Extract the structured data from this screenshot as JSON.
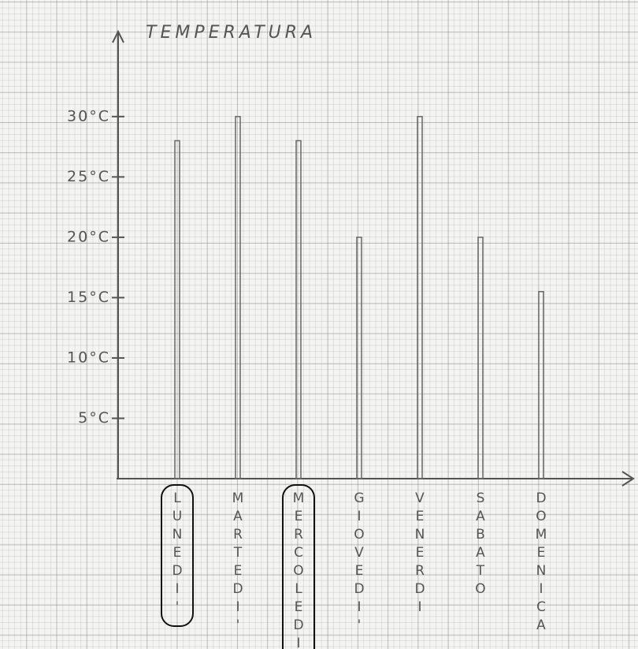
{
  "chart_data": {
    "type": "bar",
    "title": "TEMPERATURA",
    "categories": [
      "LUNEDI'",
      "MARTEDI'",
      "MERCOLEDI",
      "GIOVEDI'",
      "VENERDI",
      "SABATO",
      "DOMENICA"
    ],
    "values": [
      28,
      30,
      28,
      20,
      30,
      20,
      15.5
    ],
    "color": "#666666",
    "ylim": [
      0,
      36
    ],
    "yticks": [
      {
        "value": 5,
        "label": "5°C"
      },
      {
        "value": 10,
        "label": "10°C"
      },
      {
        "value": 15,
        "label": "15°C"
      },
      {
        "value": 20,
        "label": "20°C"
      },
      {
        "value": 25,
        "label": "25°C"
      },
      {
        "value": 30,
        "label": "30°C"
      }
    ],
    "highlighted_categories": [
      0,
      2
    ]
  }
}
